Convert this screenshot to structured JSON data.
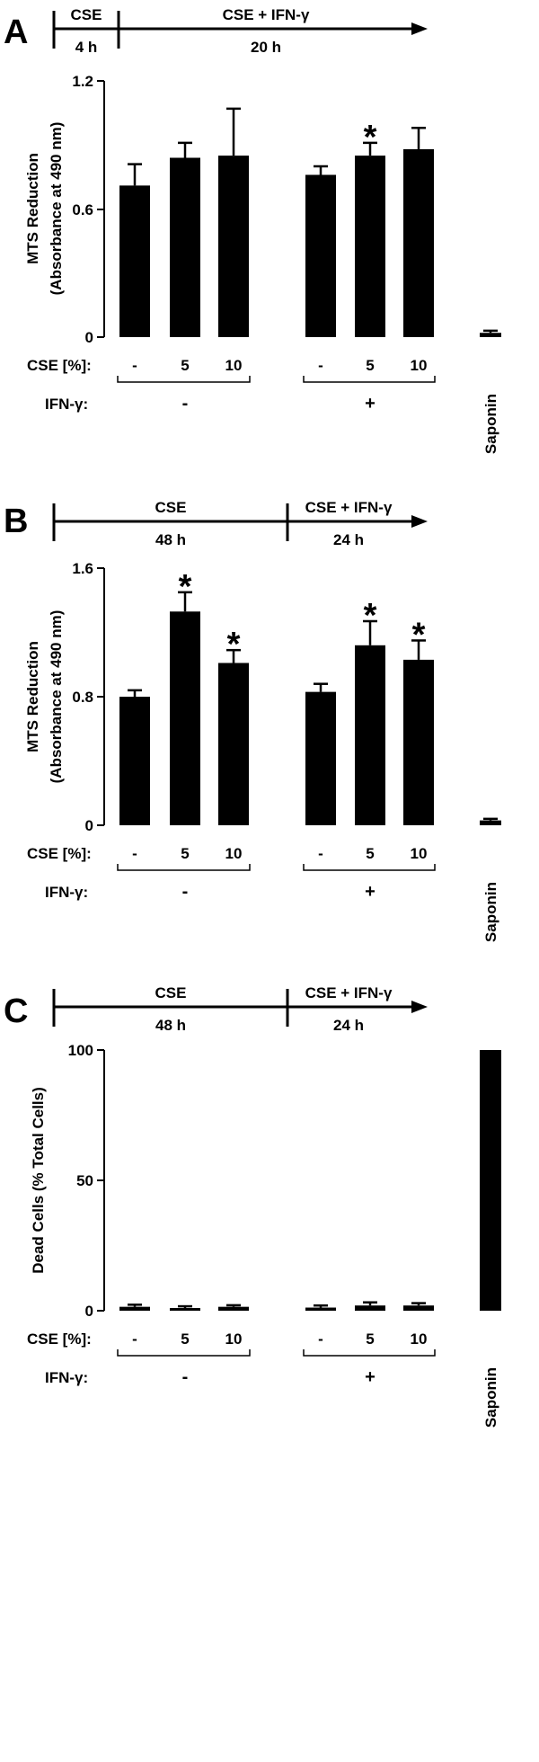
{
  "chart_data": [
    {
      "type": "bar",
      "panel": "A",
      "timeline": {
        "seg1": "CSE",
        "seg1_time": "4 h",
        "seg2": "CSE + IFN-γ",
        "seg2_time": "20 h"
      },
      "ylabel": "MTS Reduction",
      "ylabel2": "(Absorbance at 490 nm)",
      "ylim": [
        0,
        1.2
      ],
      "yticks": [
        "0",
        "0.6",
        "1.2"
      ],
      "categories": [
        "-",
        "5",
        "10",
        "-",
        "5",
        "10",
        "Saponin"
      ],
      "values": [
        0.71,
        0.84,
        0.85,
        0.76,
        0.85,
        0.88,
        0.02
      ],
      "errors": [
        0.1,
        0.07,
        0.22,
        0.04,
        0.06,
        0.1,
        0.01
      ],
      "significant": [
        false,
        false,
        false,
        false,
        true,
        false,
        false
      ],
      "row1_label": "CSE [%]:",
      "row2_label": "IFN-γ:",
      "group_minus": "-",
      "group_plus": "+",
      "star": "*"
    },
    {
      "type": "bar",
      "panel": "B",
      "timeline": {
        "seg1": "CSE",
        "seg1_time": "48 h",
        "seg2": "CSE + IFN-γ",
        "seg2_time": "24 h"
      },
      "ylabel": "MTS Reduction",
      "ylabel2": "(Absorbance at 490 nm)",
      "ylim": [
        0,
        1.6
      ],
      "yticks": [
        "0",
        "0.8",
        "1.6"
      ],
      "categories": [
        "-",
        "5",
        "10",
        "-",
        "5",
        "10",
        "Saponin"
      ],
      "values": [
        0.8,
        1.33,
        1.01,
        0.83,
        1.12,
        1.03,
        0.03
      ],
      "errors": [
        0.04,
        0.12,
        0.08,
        0.05,
        0.15,
        0.12,
        0.01
      ],
      "significant": [
        false,
        true,
        true,
        false,
        true,
        true,
        false
      ],
      "row1_label": "CSE [%]:",
      "row2_label": "IFN-γ:",
      "group_minus": "-",
      "group_plus": "+",
      "star": "*"
    },
    {
      "type": "bar",
      "panel": "C",
      "timeline": {
        "seg1": "CSE",
        "seg1_time": "48 h",
        "seg2": "CSE + IFN-γ",
        "seg2_time": "24 h"
      },
      "ylabel": "Dead Cells (% Total Cells)",
      "ylabel2": "",
      "ylim": [
        0,
        100
      ],
      "yticks": [
        "0",
        "50",
        "100"
      ],
      "categories": [
        "-",
        "5",
        "10",
        "-",
        "5",
        "10",
        "Saponin"
      ],
      "values": [
        1.5,
        1.0,
        1.5,
        1.2,
        2.0,
        2.0,
        100
      ],
      "errors": [
        0.8,
        0.7,
        0.6,
        0.8,
        1.2,
        0.9,
        0
      ],
      "significant": [
        false,
        false,
        false,
        false,
        false,
        false,
        false
      ],
      "row1_label": "CSE [%]:",
      "row2_label": "IFN-γ:",
      "group_minus": "-",
      "group_plus": "+",
      "star": "*"
    }
  ]
}
